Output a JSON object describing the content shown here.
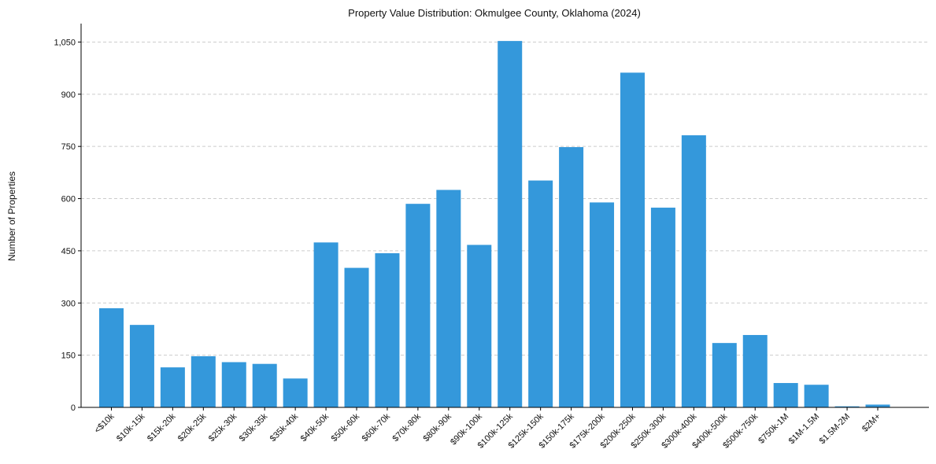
{
  "chart_data": {
    "type": "bar",
    "title": "Property Value Distribution: Okmulgee County, Oklahoma (2024)",
    "xlabel": "",
    "ylabel": "Number of Properties",
    "categories": [
      "<$10k",
      "$10k-15k",
      "$15k-20k",
      "$20k-25k",
      "$25k-30k",
      "$30k-35k",
      "$35k-40k",
      "$40k-50k",
      "$50k-60k",
      "$60k-70k",
      "$70k-80k",
      "$80k-90k",
      "$90k-100k",
      "$100k-125k",
      "$125k-150k",
      "$150k-175k",
      "$175k-200k",
      "$200k-250k",
      "$250k-300k",
      "$300k-400k",
      "$400k-500k",
      "$500k-750k",
      "$750k-1M",
      "$1M-1.5M",
      "$1.5M-2M",
      "$2M+"
    ],
    "values": [
      285,
      237,
      115,
      147,
      130,
      125,
      83,
      474,
      401,
      443,
      585,
      625,
      467,
      1053,
      652,
      748,
      589,
      962,
      574,
      782,
      185,
      208,
      70,
      65,
      3,
      8
    ],
    "ylim": [
      0,
      1103
    ],
    "yticks": [
      0,
      150,
      300,
      450,
      600,
      750,
      900,
      1050
    ],
    "ytick_labels": [
      "0",
      "150",
      "300",
      "450",
      "600",
      "750",
      "900",
      "1,050"
    ],
    "grid": "y-dashed",
    "bar_color": "#3498db"
  }
}
